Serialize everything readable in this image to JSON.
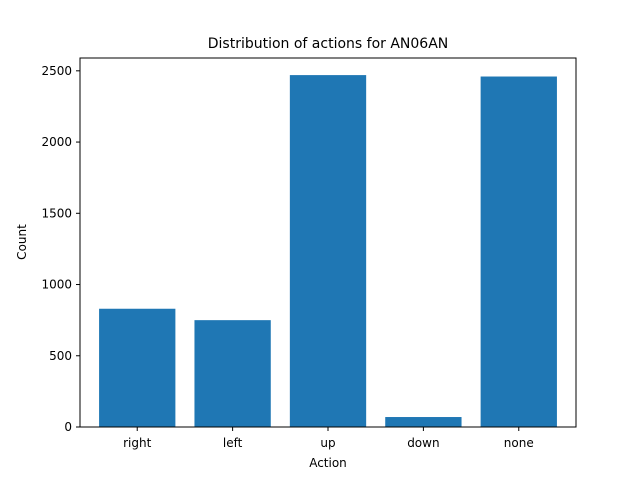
{
  "chart_data": {
    "type": "bar",
    "title": "Distribution of actions for AN06AN",
    "xlabel": "Action",
    "ylabel": "Count",
    "categories": [
      "right",
      "left",
      "up",
      "down",
      "none"
    ],
    "values": [
      830,
      750,
      2470,
      70,
      2460
    ],
    "ylim": [
      0,
      2590
    ],
    "yticks": [
      0,
      500,
      1000,
      1500,
      2000,
      2500
    ],
    "grid": false,
    "legend": "none",
    "bar_color": "#1f77b4"
  }
}
